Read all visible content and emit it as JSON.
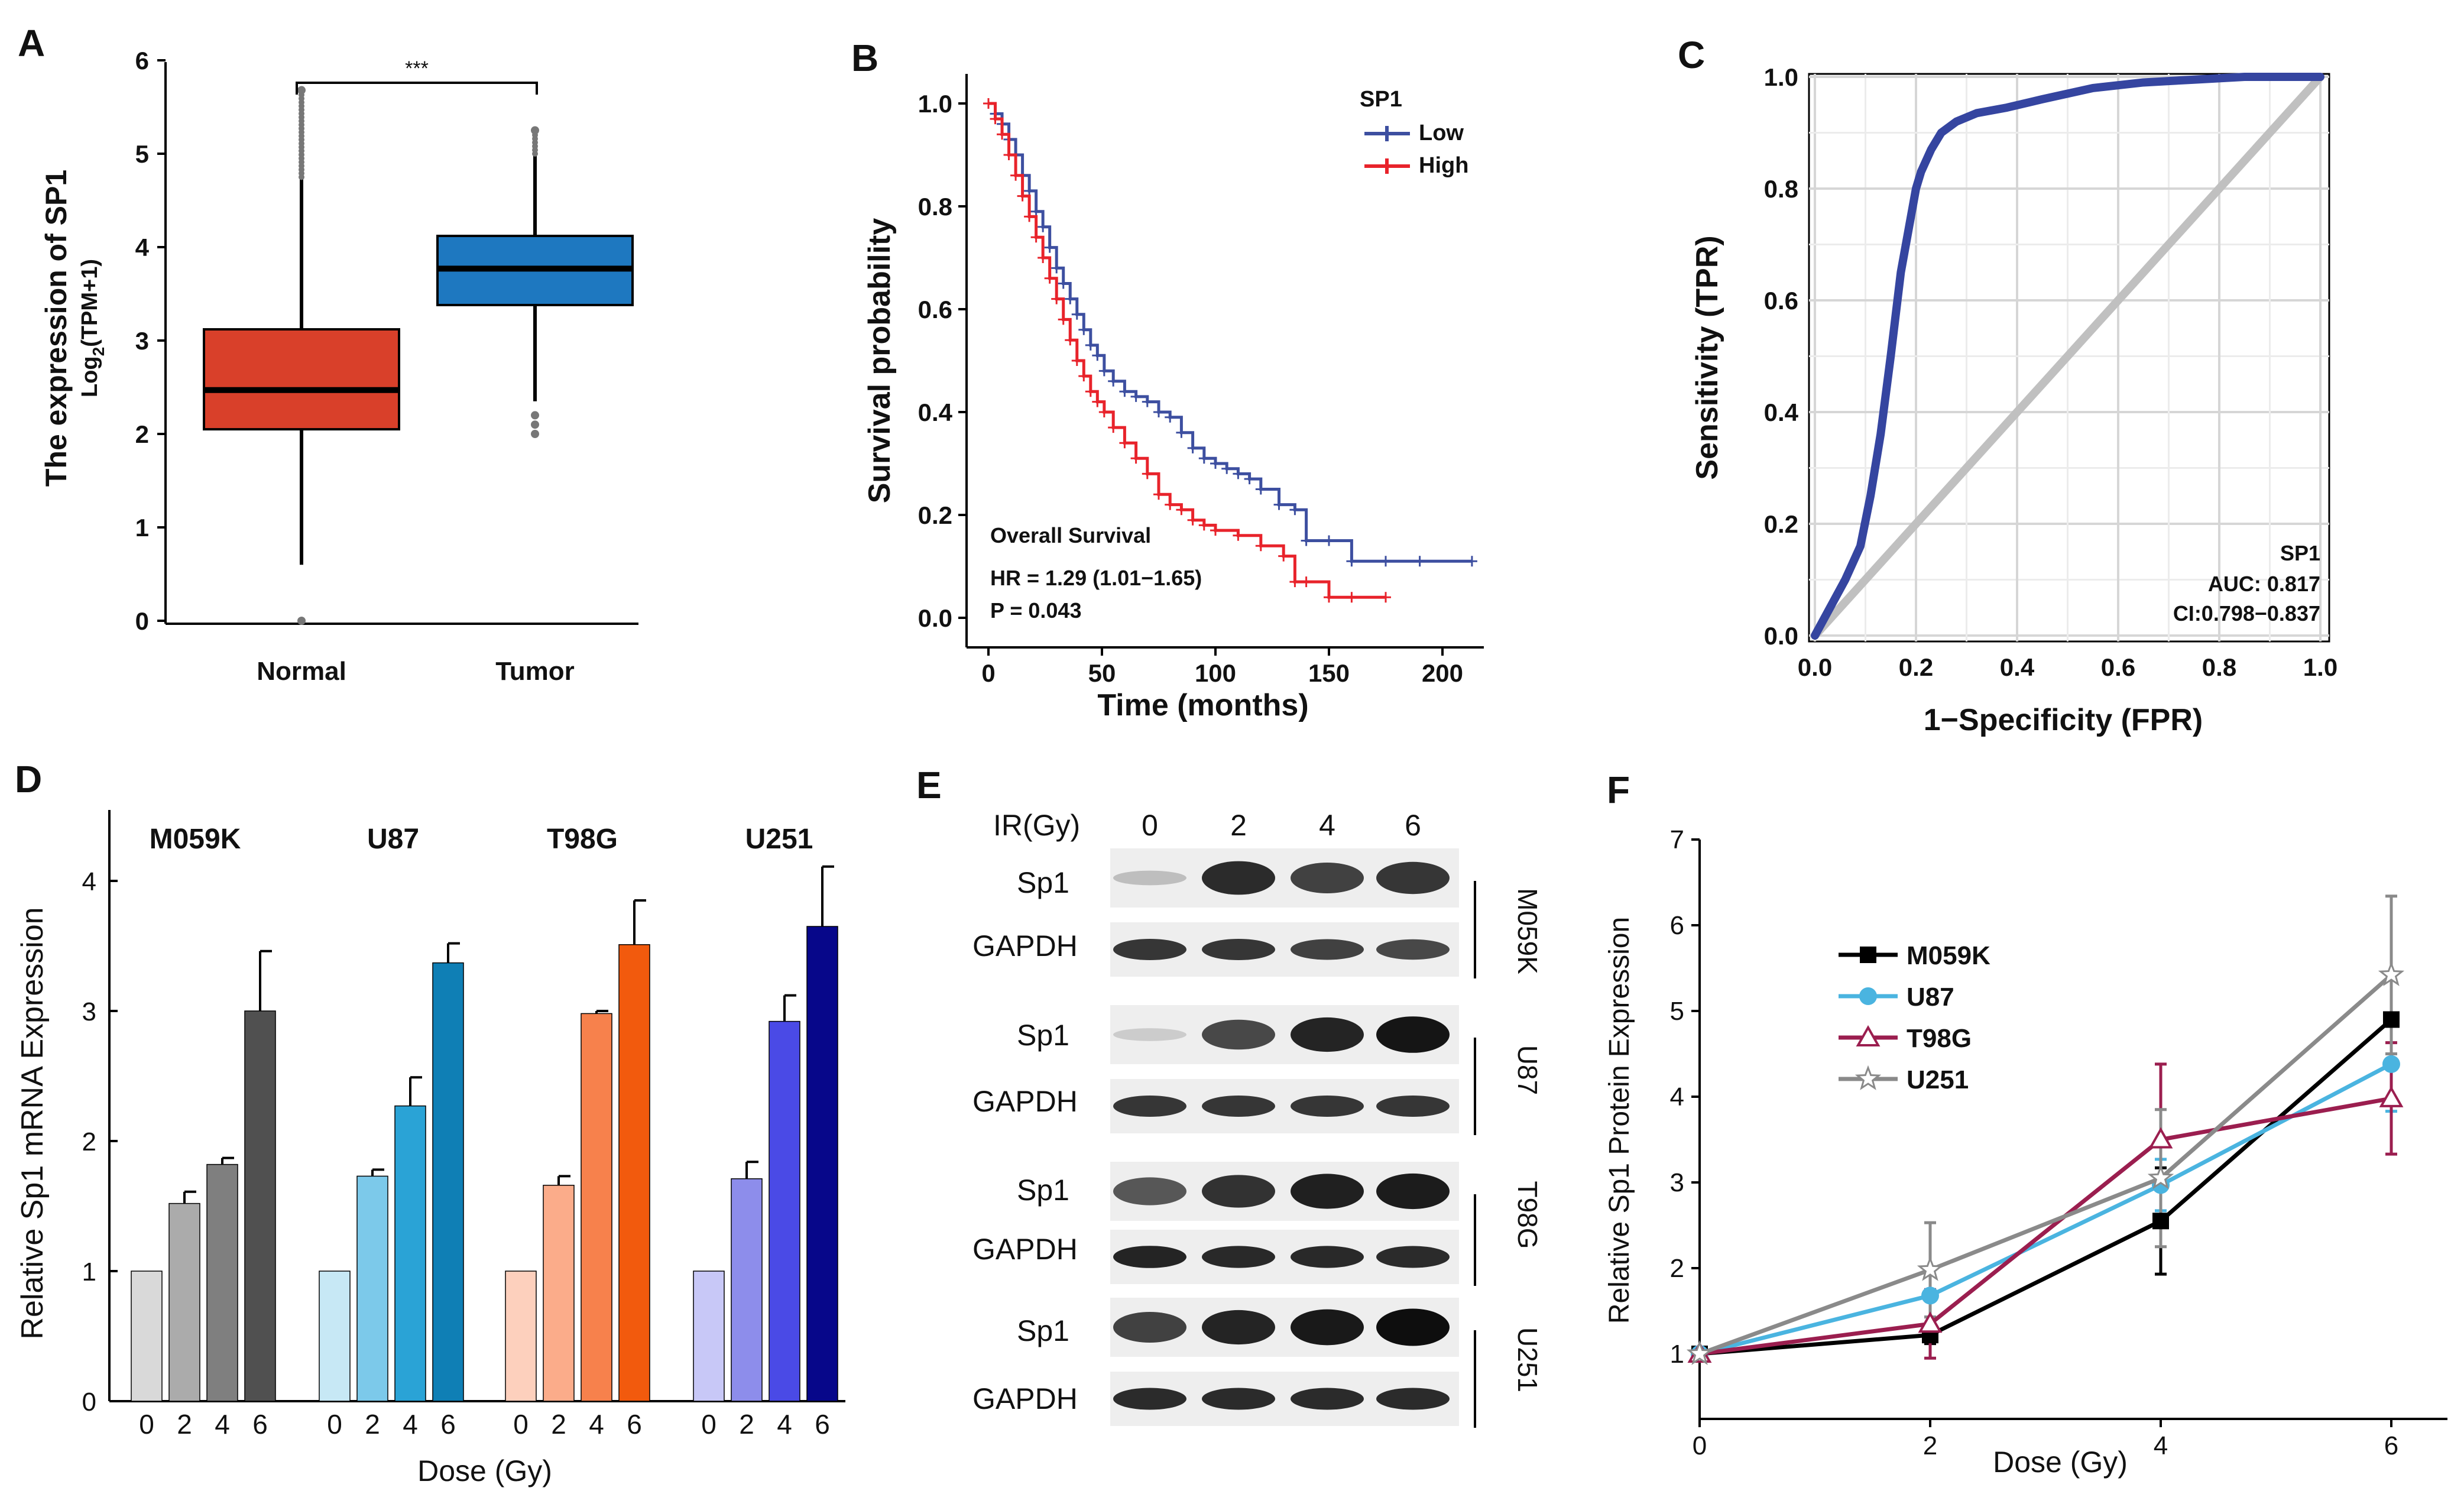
{
  "panel_labels": [
    "A",
    "B",
    "C",
    "D",
    "E",
    "F"
  ],
  "chart_data": [
    {
      "panel": "A",
      "type": "box",
      "ylabel_line1": "The expression of SP1",
      "ylabel_line2": "Log2(TPM+1)",
      "ylabel_line2_main": "Log",
      "ylabel_line2_sub": "2",
      "ylabel_line2_tail": "(TPM+1)",
      "ylim": [
        0,
        6
      ],
      "yticks": [
        "0",
        "1",
        "2",
        "3",
        "4",
        "5",
        "6"
      ],
      "categories": [
        "Normal",
        "Tumor"
      ],
      "boxes": [
        {
          "name": "Normal",
          "q1": 2.05,
          "median": 2.47,
          "q3": 3.12,
          "whisker_low": 0.6,
          "whisker_high": 4.75,
          "outliers_low": [
            0.0
          ],
          "outliers_high": [
            5.68
          ],
          "color": "#d9402a"
        },
        {
          "name": "Tumor",
          "q1": 3.38,
          "median": 3.77,
          "q3": 4.12,
          "whisker_low": 2.35,
          "whisker_high": 5.0,
          "outliers_low": [
            2.0,
            2.1,
            2.2
          ],
          "outliers_high": [
            5.25
          ],
          "color": "#1e78c0"
        }
      ],
      "significance": "***"
    },
    {
      "panel": "B",
      "type": "line",
      "subtype": "kaplan-meier",
      "xlabel": "Time (months)",
      "ylabel": "Survival probability",
      "xlim": [
        0,
        210
      ],
      "ylim": [
        0,
        1
      ],
      "xticks": [
        "0",
        "50",
        "100",
        "150",
        "200"
      ],
      "yticks": [
        "0.0",
        "0.2",
        "0.4",
        "0.6",
        "0.8",
        "1.0"
      ],
      "legend_title": "SP1",
      "annotation_title": "Overall Survival",
      "annotation_hr": "HR = 1.29 (1.01−1.65)",
      "annotation_p": "P = 0.043",
      "series": [
        {
          "name": "Low",
          "color": "#3d4fa0",
          "x": [
            0,
            3,
            6,
            9,
            12,
            15,
            18,
            21,
            24,
            27,
            30,
            33,
            36,
            39,
            42,
            45,
            48,
            51,
            55,
            60,
            65,
            70,
            75,
            80,
            85,
            90,
            95,
            100,
            105,
            110,
            115,
            120,
            128,
            135,
            140,
            150,
            160,
            175,
            190,
            213
          ],
          "y": [
            1.0,
            0.98,
            0.96,
            0.93,
            0.9,
            0.86,
            0.83,
            0.79,
            0.76,
            0.72,
            0.68,
            0.65,
            0.62,
            0.59,
            0.56,
            0.53,
            0.51,
            0.48,
            0.46,
            0.44,
            0.43,
            0.42,
            0.4,
            0.39,
            0.36,
            0.33,
            0.31,
            0.3,
            0.29,
            0.28,
            0.27,
            0.25,
            0.22,
            0.21,
            0.15,
            0.15,
            0.11,
            0.11,
            0.11,
            0.11
          ]
        },
        {
          "name": "High",
          "color": "#e8232b",
          "x": [
            0,
            3,
            6,
            9,
            12,
            15,
            18,
            21,
            24,
            27,
            30,
            33,
            36,
            39,
            42,
            45,
            48,
            51,
            55,
            60,
            65,
            70,
            75,
            80,
            85,
            90,
            95,
            100,
            110,
            120,
            130,
            135,
            140,
            150,
            160,
            175
          ],
          "y": [
            1.0,
            0.97,
            0.94,
            0.9,
            0.86,
            0.82,
            0.78,
            0.74,
            0.7,
            0.66,
            0.62,
            0.58,
            0.54,
            0.5,
            0.47,
            0.44,
            0.42,
            0.4,
            0.37,
            0.34,
            0.31,
            0.28,
            0.24,
            0.22,
            0.21,
            0.19,
            0.18,
            0.17,
            0.16,
            0.14,
            0.12,
            0.07,
            0.07,
            0.04,
            0.04,
            0.04
          ]
        }
      ]
    },
    {
      "panel": "C",
      "type": "line",
      "subtype": "roc",
      "xlabel": "1−Specificity (FPR)",
      "ylabel": "Sensitivity (TPR)",
      "xlim": [
        0,
        1
      ],
      "ylim": [
        0,
        1
      ],
      "xticks": [
        "0.0",
        "0.2",
        "0.4",
        "0.6",
        "0.8",
        "1.0"
      ],
      "yticks": [
        "0.0",
        "0.2",
        "0.4",
        "0.6",
        "0.8",
        "1.0"
      ],
      "annotation_name": "SP1",
      "annotation_auc": "AUC: 0.817",
      "annotation_ci": "CI:0.798−0.837",
      "series": [
        {
          "name": "SP1",
          "color": "#3545a0",
          "x": [
            0,
            0.03,
            0.06,
            0.09,
            0.11,
            0.13,
            0.15,
            0.17,
            0.19,
            0.2,
            0.21,
            0.23,
            0.25,
            0.28,
            0.32,
            0.38,
            0.45,
            0.55,
            0.65,
            0.75,
            0.85,
            1.0
          ],
          "y": [
            0,
            0.05,
            0.1,
            0.16,
            0.25,
            0.36,
            0.5,
            0.65,
            0.75,
            0.8,
            0.83,
            0.87,
            0.9,
            0.92,
            0.935,
            0.945,
            0.96,
            0.98,
            0.99,
            0.995,
            1.0,
            1.0
          ]
        },
        {
          "name": "reference",
          "color": "#c0c0c0",
          "x": [
            0,
            1
          ],
          "y": [
            0,
            1
          ]
        }
      ]
    },
    {
      "panel": "D",
      "type": "bar",
      "ylabel": "Relative Sp1 mRNA Expression",
      "xlabel": "Dose (Gy)",
      "ylim": [
        0,
        4.5
      ],
      "yticks": [
        "0",
        "1",
        "2",
        "3",
        "4"
      ],
      "categories": [
        "0",
        "2",
        "4",
        "6"
      ],
      "groups": [
        {
          "name": "M059K",
          "values": [
            1.0,
            1.52,
            1.82,
            3.0
          ],
          "errors": [
            0,
            0.09,
            0.05,
            0.46
          ],
          "colors": [
            "#d9d9d9",
            "#ababab",
            "#7f7f7f",
            "#505050"
          ]
        },
        {
          "name": "U87",
          "values": [
            1.0,
            1.73,
            2.27,
            3.37
          ],
          "errors": [
            0,
            0.05,
            0.22,
            0.15
          ],
          "colors": [
            "#c7e8f5",
            "#7cc9ea",
            "#2aa3d6",
            "#0f7fb5"
          ]
        },
        {
          "name": "T98G",
          "values": [
            1.0,
            1.66,
            2.98,
            3.51
          ],
          "errors": [
            0,
            0.07,
            0.02,
            0.34
          ],
          "colors": [
            "#fdd0bd",
            "#fbac8a",
            "#f7814c",
            "#f25a0d"
          ]
        },
        {
          "name": "U251",
          "values": [
            1.0,
            1.71,
            2.92,
            3.65
          ],
          "errors": [
            0,
            0.13,
            0.2,
            0.46
          ],
          "colors": [
            "#c8c8f7",
            "#8d8deb",
            "#4a4ae6",
            "#07078a"
          ]
        }
      ]
    },
    {
      "panel": "E",
      "type": "other",
      "subtype": "western-blot",
      "header_label": "IR(Gy)",
      "lanes": [
        "0",
        "2",
        "4",
        "6"
      ],
      "blots": [
        {
          "cell_line": "M059K",
          "sp1_label": "Sp1",
          "gapdh_label": "GAPDH",
          "sp1_intensity": [
            0.18,
            0.85,
            0.75,
            0.8
          ],
          "gapdh_intensity": [
            0.8,
            0.8,
            0.75,
            0.72
          ]
        },
        {
          "cell_line": "U87",
          "sp1_label": "Sp1",
          "gapdh_label": "GAPDH",
          "sp1_intensity": [
            0.12,
            0.72,
            0.88,
            0.95
          ],
          "gapdh_intensity": [
            0.8,
            0.8,
            0.8,
            0.8
          ]
        },
        {
          "cell_line": "T98G",
          "sp1_label": "Sp1",
          "gapdh_label": "GAPDH",
          "sp1_intensity": [
            0.65,
            0.82,
            0.9,
            0.92
          ],
          "gapdh_intensity": [
            0.88,
            0.86,
            0.86,
            0.85
          ]
        },
        {
          "cell_line": "U251",
          "sp1_label": "Sp1",
          "gapdh_label": "GAPDH",
          "sp1_intensity": [
            0.75,
            0.88,
            0.93,
            0.98
          ],
          "gapdh_intensity": [
            0.85,
            0.85,
            0.85,
            0.85
          ]
        }
      ]
    },
    {
      "panel": "F",
      "type": "line",
      "xlabel": "Dose (Gy)",
      "ylabel": "Relative Sp1 Protein Expression",
      "xlim": [
        0,
        6
      ],
      "ylim": [
        0.5,
        7
      ],
      "xticks": [
        "0",
        "2",
        "4",
        "6"
      ],
      "yticks": [
        "1",
        "2",
        "3",
        "4",
        "5",
        "6",
        "7"
      ],
      "x": [
        0,
        2,
        4,
        6
      ],
      "series": [
        {
          "name": "M059K",
          "color": "#000000",
          "marker": "square",
          "values": [
            1.0,
            1.22,
            2.55,
            4.9
          ],
          "errors": [
            0,
            0.1,
            0.62,
            0.55
          ]
        },
        {
          "name": "U87",
          "color": "#4ab4e0",
          "marker": "circle",
          "values": [
            1.0,
            1.68,
            2.97,
            4.38
          ],
          "errors": [
            0,
            0.25,
            0.3,
            0.55
          ]
        },
        {
          "name": "T98G",
          "color": "#9b1e4f",
          "marker": "triangle",
          "values": [
            1.0,
            1.35,
            3.5,
            3.98
          ],
          "errors": [
            0,
            0.4,
            0.88,
            0.65
          ]
        },
        {
          "name": "U251",
          "color": "#8a8a8a",
          "marker": "star",
          "values": [
            1.0,
            1.98,
            3.05,
            5.42
          ],
          "errors": [
            0,
            0.55,
            0.8,
            0.92
          ]
        }
      ]
    }
  ]
}
